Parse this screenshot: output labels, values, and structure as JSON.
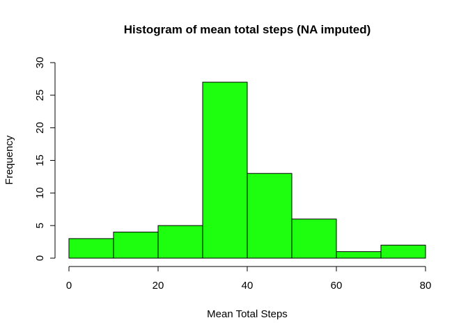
{
  "chart_data": {
    "type": "bar",
    "title": "Histogram of mean total steps (NA imputed)",
    "xlabel": "Mean Total Steps",
    "ylabel": "Frequency",
    "bins": [
      {
        "from": 0,
        "to": 10,
        "count": 3
      },
      {
        "from": 10,
        "to": 20,
        "count": 4
      },
      {
        "from": 20,
        "to": 30,
        "count": 5
      },
      {
        "from": 30,
        "to": 40,
        "count": 27
      },
      {
        "from": 40,
        "to": 50,
        "count": 13
      },
      {
        "from": 50,
        "to": 60,
        "count": 6
      },
      {
        "from": 60,
        "to": 70,
        "count": 1
      },
      {
        "from": 70,
        "to": 80,
        "count": 2
      }
    ],
    "xlim": [
      0,
      80
    ],
    "ylim": [
      0,
      30
    ],
    "x_ticks": [
      "0",
      "20",
      "40",
      "60",
      "80"
    ],
    "y_ticks": [
      "0",
      "5",
      "10",
      "15",
      "20",
      "25",
      "30"
    ],
    "grid": false,
    "bar_color": "#1eff10",
    "border_color": "#000000"
  }
}
